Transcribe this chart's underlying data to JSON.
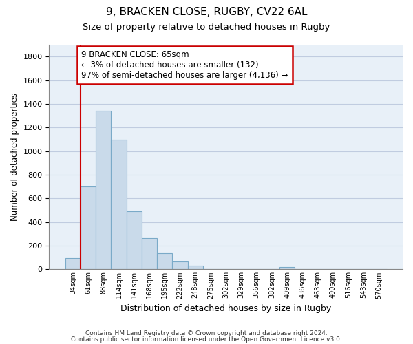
{
  "title_line1": "9, BRACKEN CLOSE, RUGBY, CV22 6AL",
  "title_line2": "Size of property relative to detached houses in Rugby",
  "xlabel": "Distribution of detached houses by size in Rugby",
  "ylabel": "Number of detached properties",
  "categories": [
    "34sqm",
    "61sqm",
    "88sqm",
    "114sqm",
    "141sqm",
    "168sqm",
    "195sqm",
    "222sqm",
    "248sqm",
    "275sqm",
    "302sqm",
    "329sqm",
    "356sqm",
    "382sqm",
    "409sqm",
    "436sqm",
    "463sqm",
    "490sqm",
    "516sqm",
    "543sqm",
    "570sqm"
  ],
  "values": [
    95,
    700,
    1340,
    1095,
    490,
    265,
    135,
    68,
    32,
    0,
    0,
    0,
    0,
    0,
    17,
    0,
    0,
    0,
    0,
    0,
    0
  ],
  "bar_color": "#c9daea",
  "bar_edge_color": "#7aaac8",
  "subject_line_color": "#cc0000",
  "annotation_text_line1": "9 BRACKEN CLOSE: 65sqm",
  "annotation_text_line2": "← 3% of detached houses are smaller (132)",
  "annotation_text_line3": "97% of semi-detached houses are larger (4,136) →",
  "annotation_box_color": "#cc0000",
  "ylim": [
    0,
    1900
  ],
  "yticks": [
    0,
    200,
    400,
    600,
    800,
    1000,
    1200,
    1400,
    1600,
    1800
  ],
  "grid_color": "#c0cce0",
  "bg_color": "#e8f0f8",
  "footer_line1": "Contains HM Land Registry data © Crown copyright and database right 2024.",
  "footer_line2": "Contains public sector information licensed under the Open Government Licence v3.0.",
  "fig_width": 6.0,
  "fig_height": 5.0
}
